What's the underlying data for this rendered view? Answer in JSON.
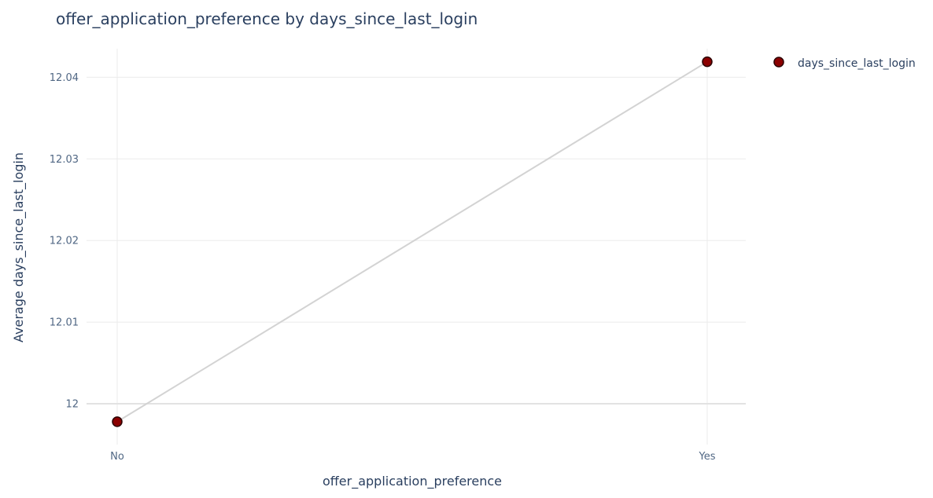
{
  "chart_data": {
    "type": "line",
    "title": "offer_application_preference by days_since_last_login",
    "xlabel": "offer_application_preference",
    "ylabel": "Average days_since_last_login",
    "categories": [
      "No",
      "Yes"
    ],
    "series": [
      {
        "name": "days_since_last_login",
        "values": [
          11.9978,
          12.0419
        ]
      }
    ],
    "ylim": [
      11.995,
      12.0435
    ],
    "yticks": [
      12,
      12.01,
      12.02,
      12.03,
      12.04
    ],
    "ytick_labels": [
      "12",
      "12.01",
      "12.02",
      "12.03",
      "12.04"
    ],
    "grid": true,
    "legend_position": "top-right",
    "colors": {
      "marker_fill": "#8b0000",
      "marker_stroke": "#2b0000",
      "line": "#d3d3d3"
    }
  }
}
